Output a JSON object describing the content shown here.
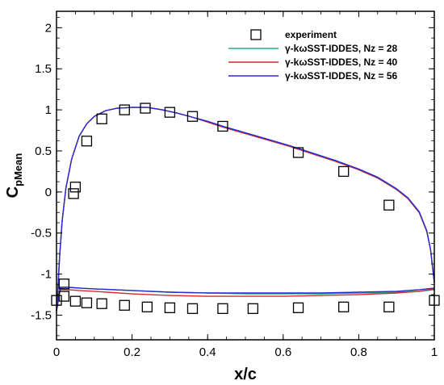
{
  "chart_data": {
    "type": "line",
    "xlabel": "x/c",
    "ylabel_main": "C",
    "ylabel_sub": "pMean",
    "xlim": [
      0,
      1
    ],
    "ylim": [
      -1.8,
      2.2
    ],
    "xticks": [
      0,
      0.2,
      0.4,
      0.6,
      0.8,
      1
    ],
    "xtick_labels": [
      "0",
      "0.2",
      "0.4",
      "0.6",
      "0.8",
      "1"
    ],
    "yticks": [
      -1.5,
      -1,
      -0.5,
      0,
      0.5,
      1,
      1.5,
      2
    ],
    "ytick_labels": [
      "-1.5",
      "-1",
      "-0.5",
      "0",
      "0.5",
      "1",
      "1.5",
      "2"
    ],
    "grid": false,
    "legend_position": "top-right",
    "experiment": {
      "name": "experiment",
      "marker": "hollow-square",
      "color": "#000000",
      "upper": {
        "x": [
          0.02,
          0.05,
          0.08,
          0.12,
          0.18,
          0.235,
          0.3,
          0.36,
          0.44,
          0.64,
          0.76,
          0.88
        ],
        "y": [
          -1.12,
          0.06,
          0.62,
          0.89,
          1.0,
          1.02,
          0.97,
          0.92,
          0.8,
          0.48,
          0.25,
          -0.16
        ]
      },
      "lower": {
        "x": [
          0.0,
          0.02,
          0.05,
          0.08,
          0.12,
          0.18,
          0.24,
          0.3,
          0.36,
          0.44,
          0.52,
          0.64,
          0.76,
          0.88,
          1.0
        ],
        "y": [
          -1.32,
          -1.27,
          -1.33,
          -1.35,
          -1.36,
          -1.38,
          -1.4,
          -1.41,
          -1.42,
          -1.42,
          -1.42,
          -1.41,
          -1.4,
          -1.4,
          -1.32
        ]
      },
      "extra": {
        "x": [
          0.045
        ],
        "y": [
          -0.02
        ]
      }
    },
    "series": [
      {
        "name": "γ-kωSST-IDDES, Nz = 28",
        "color": "#1ab38c",
        "upper": {
          "x": [
            0.0,
            0.003,
            0.008,
            0.015,
            0.025,
            0.04,
            0.06,
            0.08,
            0.1,
            0.13,
            0.16,
            0.2,
            0.24,
            0.28,
            0.32,
            0.36,
            0.4,
            0.44,
            0.5,
            0.56,
            0.62,
            0.68,
            0.74,
            0.8,
            0.85,
            0.9,
            0.93,
            0.96,
            0.98,
            0.99,
            1.0
          ],
          "y": [
            -1.45,
            -1.25,
            -0.8,
            -0.35,
            0.05,
            0.4,
            0.68,
            0.83,
            0.92,
            0.99,
            1.02,
            1.03,
            1.03,
            1.0,
            0.96,
            0.91,
            0.86,
            0.8,
            0.72,
            0.64,
            0.56,
            0.47,
            0.38,
            0.27,
            0.17,
            0.03,
            -0.08,
            -0.25,
            -0.48,
            -0.7,
            -1.1
          ]
        },
        "lower": {
          "x": [
            0.0,
            0.01,
            0.03,
            0.06,
            0.1,
            0.2,
            0.3,
            0.4,
            0.5,
            0.6,
            0.7,
            0.8,
            0.9,
            0.96,
            1.0
          ],
          "y": [
            -1.45,
            -1.17,
            -1.16,
            -1.17,
            -1.18,
            -1.2,
            -1.22,
            -1.23,
            -1.24,
            -1.24,
            -1.24,
            -1.23,
            -1.22,
            -1.21,
            -1.19
          ]
        }
      },
      {
        "name": "γ-kωSST-IDDES, Nz = 40",
        "color": "#d42a2a",
        "upper": {
          "x": [
            0.0,
            0.003,
            0.008,
            0.015,
            0.025,
            0.04,
            0.06,
            0.08,
            0.1,
            0.13,
            0.16,
            0.2,
            0.24,
            0.28,
            0.32,
            0.36,
            0.4,
            0.44,
            0.5,
            0.56,
            0.62,
            0.68,
            0.74,
            0.8,
            0.85,
            0.9,
            0.93,
            0.96,
            0.98,
            0.99,
            1.0
          ],
          "y": [
            -1.45,
            -1.25,
            -0.8,
            -0.35,
            0.05,
            0.4,
            0.68,
            0.83,
            0.92,
            0.99,
            1.02,
            1.03,
            1.03,
            1.0,
            0.96,
            0.91,
            0.85,
            0.79,
            0.71,
            0.63,
            0.55,
            0.46,
            0.37,
            0.27,
            0.17,
            0.03,
            -0.08,
            -0.25,
            -0.48,
            -0.7,
            -1.1
          ]
        },
        "lower": {
          "x": [
            0.0,
            0.01,
            0.03,
            0.06,
            0.1,
            0.2,
            0.3,
            0.4,
            0.5,
            0.6,
            0.7,
            0.8,
            0.9,
            0.96,
            1.0
          ],
          "y": [
            -1.45,
            -1.19,
            -1.19,
            -1.2,
            -1.21,
            -1.24,
            -1.26,
            -1.27,
            -1.27,
            -1.27,
            -1.26,
            -1.25,
            -1.23,
            -1.21,
            -1.18
          ]
        }
      },
      {
        "name": "γ-kωSST-IDDES, Nz = 56",
        "color": "#2a2ad4",
        "upper": {
          "x": [
            0.0,
            0.003,
            0.008,
            0.015,
            0.025,
            0.04,
            0.06,
            0.08,
            0.1,
            0.13,
            0.16,
            0.2,
            0.24,
            0.28,
            0.32,
            0.36,
            0.4,
            0.44,
            0.5,
            0.56,
            0.62,
            0.68,
            0.74,
            0.8,
            0.85,
            0.9,
            0.93,
            0.96,
            0.98,
            0.99,
            1.0
          ],
          "y": [
            -1.45,
            -1.25,
            -0.8,
            -0.35,
            0.05,
            0.4,
            0.68,
            0.83,
            0.92,
            0.99,
            1.02,
            1.03,
            1.03,
            1.0,
            0.96,
            0.91,
            0.86,
            0.8,
            0.72,
            0.64,
            0.56,
            0.47,
            0.38,
            0.28,
            0.18,
            0.04,
            -0.07,
            -0.24,
            -0.47,
            -0.7,
            -1.1
          ]
        },
        "lower": {
          "x": [
            0.0,
            0.01,
            0.03,
            0.06,
            0.1,
            0.2,
            0.3,
            0.4,
            0.5,
            0.6,
            0.7,
            0.8,
            0.9,
            0.96,
            1.0
          ],
          "y": [
            -1.45,
            -1.16,
            -1.16,
            -1.17,
            -1.18,
            -1.2,
            -1.22,
            -1.23,
            -1.23,
            -1.23,
            -1.23,
            -1.22,
            -1.21,
            -1.19,
            -1.17
          ]
        }
      }
    ]
  }
}
